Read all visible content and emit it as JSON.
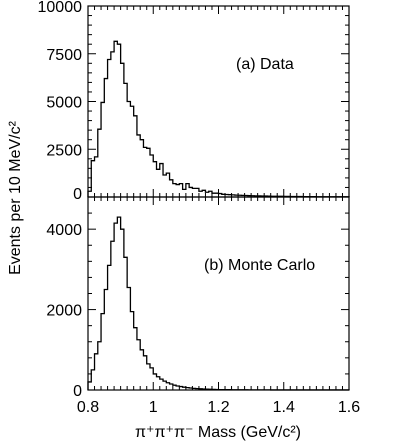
{
  "chart_data": [
    {
      "type": "histogram-step",
      "panel_label": "(a)  Data",
      "ylabel": "Events per 10 MeV/c²",
      "xlim": [
        0.8,
        1.6
      ],
      "ylim": [
        0,
        10000
      ],
      "x_ticks": [
        "0.8",
        "1",
        "1.2",
        "1.4",
        "1.6"
      ],
      "y_ticks": [
        "0",
        "2500",
        "5000",
        "7500",
        "10000"
      ],
      "bin_width": 0.01,
      "x": [
        0.8,
        0.81,
        0.82,
        0.83,
        0.84,
        0.85,
        0.86,
        0.87,
        0.88,
        0.89,
        0.9,
        0.91,
        0.92,
        0.93,
        0.94,
        0.95,
        0.96,
        0.97,
        0.98,
        0.99,
        1.0,
        1.01,
        1.02,
        1.03,
        1.04,
        1.05,
        1.06,
        1.07,
        1.08,
        1.09,
        1.1,
        1.11,
        1.12,
        1.13,
        1.14,
        1.15,
        1.16,
        1.17,
        1.18,
        1.19,
        1.2,
        1.21,
        1.22,
        1.23,
        1.24,
        1.25,
        1.26,
        1.27,
        1.28,
        1.29,
        1.3,
        1.31,
        1.32,
        1.33,
        1.34,
        1.35,
        1.36,
        1.37,
        1.38,
        1.39,
        1.4,
        1.41,
        1.42,
        1.43,
        1.44,
        1.45,
        1.46,
        1.47,
        1.48,
        1.49,
        1.5,
        1.51,
        1.52,
        1.53,
        1.54,
        1.55,
        1.56,
        1.57,
        1.58,
        1.59
      ],
      "values": [
        300,
        1900,
        2100,
        3550,
        4950,
        6200,
        7200,
        7600,
        8150,
        8000,
        7000,
        5950,
        5000,
        4750,
        4250,
        3250,
        3000,
        2600,
        2550,
        2200,
        1850,
        1450,
        1750,
        1150,
        1250,
        900,
        700,
        650,
        700,
        400,
        700,
        500,
        450,
        450,
        300,
        350,
        250,
        300,
        200,
        200,
        180,
        140,
        130,
        120,
        110,
        100,
        90,
        85,
        80,
        70,
        65,
        60,
        55,
        50,
        50,
        45,
        40,
        40,
        35,
        35,
        30,
        30,
        28,
        25,
        25,
        22,
        20,
        20,
        18,
        18,
        15,
        15,
        14,
        13,
        12,
        11,
        10,
        10,
        10,
        10
      ]
    },
    {
      "type": "histogram-step",
      "panel_label": "(b)  Monte Carlo",
      "xlabel": "π⁺π⁺π⁻  Mass (GeV/c²)",
      "xlim": [
        0.8,
        1.6
      ],
      "ylim": [
        0,
        4800
      ],
      "x_ticks": [
        "0.8",
        "1",
        "1.2",
        "1.4",
        "1.6"
      ],
      "y_ticks": [
        "0",
        "2000",
        "4000"
      ],
      "bin_width": 0.01,
      "x": [
        0.8,
        0.81,
        0.82,
        0.83,
        0.84,
        0.85,
        0.86,
        0.87,
        0.88,
        0.89,
        0.9,
        0.91,
        0.92,
        0.93,
        0.94,
        0.95,
        0.96,
        0.97,
        0.98,
        0.99,
        1.0,
        1.01,
        1.02,
        1.03,
        1.04,
        1.05,
        1.06,
        1.07,
        1.08,
        1.09,
        1.1,
        1.11,
        1.12,
        1.13,
        1.14,
        1.15,
        1.16,
        1.17,
        1.18,
        1.19,
        1.2,
        1.21,
        1.22,
        1.23,
        1.24,
        1.25,
        1.26,
        1.27,
        1.28,
        1.29,
        1.3,
        1.31,
        1.32,
        1.33,
        1.34,
        1.35,
        1.36,
        1.37,
        1.38,
        1.39,
        1.4,
        1.41,
        1.42,
        1.43,
        1.44,
        1.45,
        1.46,
        1.47,
        1.48,
        1.49,
        1.5,
        1.51,
        1.52,
        1.53,
        1.54,
        1.55,
        1.56,
        1.57,
        1.58,
        1.59
      ],
      "values": [
        200,
        500,
        900,
        1200,
        1900,
        2500,
        3100,
        3700,
        4150,
        4300,
        4000,
        3300,
        2550,
        1950,
        1550,
        1250,
        1000,
        850,
        650,
        550,
        400,
        330,
        270,
        220,
        180,
        150,
        120,
        100,
        85,
        70,
        60,
        50,
        40,
        35,
        30,
        25,
        20,
        18,
        15,
        12,
        10,
        10,
        9,
        8,
        7,
        6,
        6,
        5,
        5,
        4,
        4,
        4,
        3,
        3,
        3,
        3,
        2,
        2,
        2,
        2,
        2,
        2,
        2,
        1,
        1,
        1,
        1,
        1,
        1,
        1,
        1,
        1,
        1,
        1,
        1,
        1,
        1,
        1,
        1,
        1
      ]
    }
  ]
}
